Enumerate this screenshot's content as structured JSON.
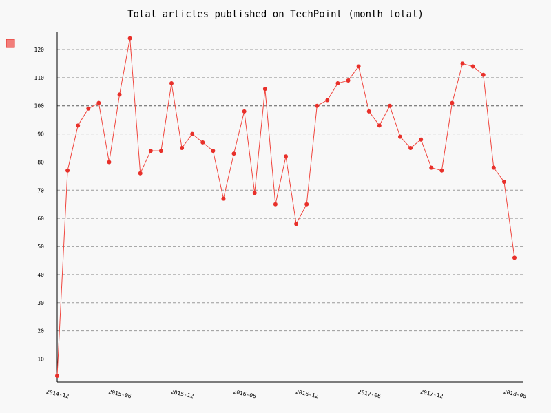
{
  "chart_data": {
    "type": "line",
    "title": "Total articles published on TechPoint (month total)",
    "xlabel": "",
    "ylabel": "",
    "ylim": [
      0,
      130
    ],
    "yticks": [
      10,
      20,
      30,
      40,
      50,
      60,
      70,
      80,
      90,
      100,
      110,
      120
    ],
    "major_gridlines": [
      50,
      100
    ],
    "grid": true,
    "legend": {
      "position": "top-left",
      "entries": [
        ""
      ]
    },
    "xticks": [
      {
        "index": 0,
        "label": "2014-12"
      },
      {
        "index": 6,
        "label": "2015-06"
      },
      {
        "index": 12,
        "label": "2015-12"
      },
      {
        "index": 18,
        "label": "2016-06"
      },
      {
        "index": 24,
        "label": "2016-12"
      },
      {
        "index": 30,
        "label": "2017-06"
      },
      {
        "index": 36,
        "label": "2017-12"
      },
      {
        "index": 44,
        "label": "2018-08"
      }
    ],
    "x": [
      "2014-12",
      "2015-01",
      "2015-02",
      "2015-03",
      "2015-04",
      "2015-05",
      "2015-06",
      "2015-07",
      "2015-08",
      "2015-09",
      "2015-10",
      "2015-11",
      "2015-12",
      "2016-01",
      "2016-02",
      "2016-03",
      "2016-04",
      "2016-05",
      "2016-06",
      "2016-07",
      "2016-08",
      "2016-09",
      "2016-10",
      "2016-11",
      "2016-12",
      "2017-01",
      "2017-02",
      "2017-03",
      "2017-04",
      "2017-05",
      "2017-06",
      "2017-07",
      "2017-08",
      "2017-09",
      "2017-10",
      "2017-11",
      "2017-12",
      "2018-01",
      "2018-02",
      "2018-03",
      "2018-04",
      "2018-05",
      "2018-06",
      "2018-07",
      "2018-08"
    ],
    "series": [
      {
        "color": "#e8302a",
        "values": [
          4,
          77,
          93,
          99,
          101,
          80,
          104,
          124,
          76,
          84,
          84,
          108,
          85,
          90,
          87,
          84,
          67,
          83,
          98,
          69,
          106,
          65,
          82,
          58,
          65,
          100,
          102,
          108,
          109,
          114,
          98,
          93,
          100,
          89,
          85,
          88,
          78,
          77,
          101,
          115,
          114,
          111,
          78,
          73,
          46
        ]
      }
    ]
  }
}
